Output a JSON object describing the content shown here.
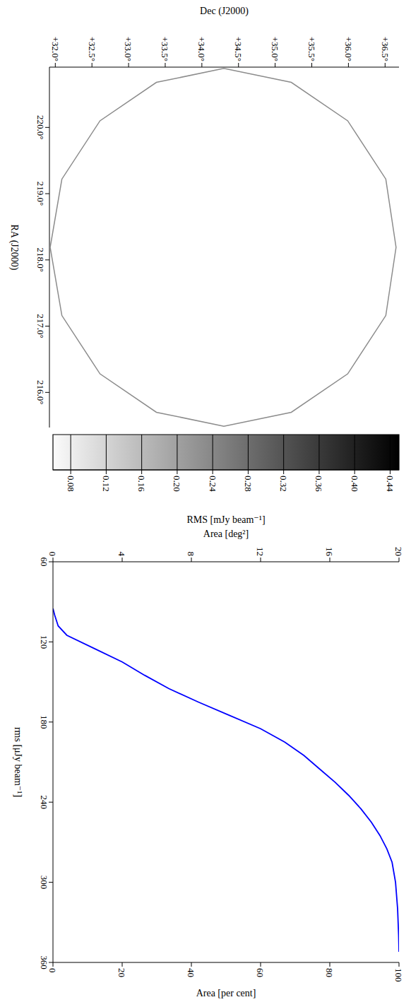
{
  "chart_data": [
    {
      "type": "map",
      "xlabel": "RA (J2000)",
      "ylabel": "Dec (J2000)",
      "xlim": [
        220.91,
        215.47
      ],
      "xticks": [
        {
          "value": 216,
          "label": "216.0°"
        },
        {
          "value": 217,
          "label": "217.0°"
        },
        {
          "value": 218,
          "label": "218.0°"
        },
        {
          "value": 219,
          "label": "219.0°"
        },
        {
          "value": 220,
          "label": "220.0°"
        }
      ],
      "ylim": [
        31.92,
        36.69
      ],
      "yticks": [
        {
          "value": 32,
          "label": "+32.0°"
        },
        {
          "value": 32.5,
          "label": "+32.5°"
        },
        {
          "value": 33,
          "label": "+33.0°"
        },
        {
          "value": 33.5,
          "label": "+33.5°"
        },
        {
          "value": 34,
          "label": "+34.0°"
        },
        {
          "value": 34.5,
          "label": "+34.5°"
        },
        {
          "value": 35,
          "label": "+35.0°"
        },
        {
          "value": 35.5,
          "label": "+35.5°"
        },
        {
          "value": 36,
          "label": "+36.0°"
        },
        {
          "value": 36.5,
          "label": "+36.5°"
        }
      ],
      "coverage_edge": {
        "ra": [
          218.19,
          219.22,
          220.1,
          220.68,
          220.89,
          220.68,
          220.1,
          219.22,
          218.19,
          217.16,
          216.28,
          215.7,
          215.49,
          215.7,
          216.28,
          217.16,
          218.19
        ],
        "dec": [
          36.65,
          36.51,
          35.99,
          35.22,
          34.3,
          33.38,
          32.61,
          32.09,
          31.93,
          32.09,
          32.61,
          33.38,
          34.3,
          35.22,
          35.99,
          36.51,
          36.65
        ]
      },
      "color": "#8c8c8c",
      "colorbar": {
        "label": "RMS [mJy beam⁻¹]",
        "range": [
          0.06,
          0.45
        ],
        "ticks": [
          {
            "value": 0.08,
            "label": "0.08"
          },
          {
            "value": 0.12,
            "label": "0.12"
          },
          {
            "value": 0.16,
            "label": "0.16"
          },
          {
            "value": 0.2,
            "label": "0.20"
          },
          {
            "value": 0.24,
            "label": "0.24"
          },
          {
            "value": 0.28,
            "label": "0.28"
          },
          {
            "value": 0.32,
            "label": "0.32"
          },
          {
            "value": 0.36,
            "label": "0.36"
          },
          {
            "value": 0.4,
            "label": "0.40"
          },
          {
            "value": 0.44,
            "label": "0.44"
          }
        ]
      }
    },
    {
      "type": "line",
      "xlabel": "rms [μJy beam⁻¹]",
      "ylabel": "Area [per cent]",
      "y2label": "Area [deg²]",
      "x": [
        95,
        100,
        108,
        115,
        125,
        135,
        145,
        155,
        165,
        175,
        185,
        195,
        205,
        215,
        225,
        235,
        245,
        255,
        265,
        275,
        285,
        300,
        320,
        340,
        352
      ],
      "values": [
        0,
        0.5,
        1.5,
        4,
        12,
        20,
        26.5,
        33.5,
        42,
        51,
        60,
        67,
        72.5,
        77,
        81.5,
        85.5,
        89,
        92,
        94.5,
        96.5,
        98,
        99,
        99.6,
        99.9,
        100
      ],
      "color": "#0000ff",
      "xlim": [
        60,
        360
      ],
      "xticks": [
        60,
        120,
        180,
        240,
        300,
        360
      ],
      "ylim": [
        0,
        100
      ],
      "yticks": [
        0,
        20,
        40,
        60,
        80,
        100
      ],
      "y2lim": [
        0,
        20
      ],
      "y2ticks": [
        0,
        4,
        8,
        12,
        16,
        20
      ]
    }
  ]
}
